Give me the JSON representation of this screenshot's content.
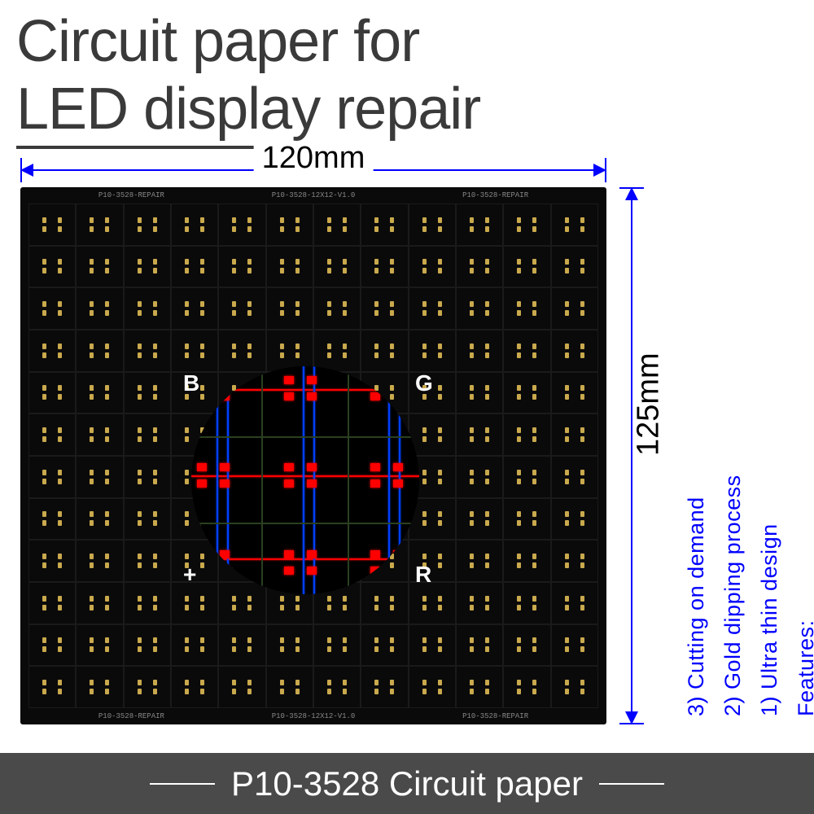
{
  "title": {
    "line1": "Circuit paper for",
    "line2": "LED display repair"
  },
  "dimensions": {
    "width_label": "120mm",
    "height_label": "125mm",
    "dim_color": "#0000ff"
  },
  "pcb": {
    "grid_cols": 12,
    "grid_rows": 12,
    "bg_color": "#0a0a0a",
    "pad_color": "#c9a94d",
    "silkscreen_left": "P10-3528-REPAIR",
    "silkscreen_center": "P10-3528-12X12-V1.0",
    "silkscreen_right": "P10-3528-REPAIR"
  },
  "magnify": {
    "corner_B": "B",
    "corner_G": "G",
    "corner_plus": "+",
    "corner_R": "R",
    "trace_h_color": "#ff0000",
    "trace_v_color": "#0040ff",
    "pad_color": "#ff0000"
  },
  "features": {
    "heading": "Features:",
    "item1": "1) Ultra thin design",
    "item2": "2) Gold dipping process",
    "item3": "3) Cutting on demand",
    "text_color": "#0000ff"
  },
  "footer": {
    "text": "P10-3528 Circuit paper",
    "bg_color": "#4a4a4a",
    "text_color": "#ffffff"
  }
}
